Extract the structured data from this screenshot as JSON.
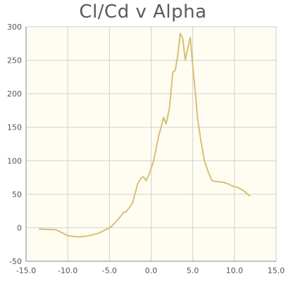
{
  "chart_data": {
    "type": "line",
    "title": "Cl/Cd v Alpha",
    "xlabel": "",
    "ylabel": "",
    "xlim": [
      -15,
      15
    ],
    "ylim": [
      -50,
      300
    ],
    "x_ticks": [
      -15,
      -10,
      -5,
      0,
      5,
      10,
      15
    ],
    "x_tick_labels": [
      "-15.0",
      "-10.0",
      "-5.0",
      "0.0",
      "5.0",
      "10.0",
      "15.0"
    ],
    "y_ticks": [
      -50,
      0,
      50,
      100,
      150,
      200,
      250,
      300
    ],
    "y_tick_labels": [
      "-50",
      "0",
      "50",
      "100",
      "150",
      "200",
      "250",
      "300"
    ],
    "grid": true,
    "legend": "none",
    "colors": {
      "line": "#d8be78",
      "plot_background": "#fffdf2",
      "grid": "#cfcfcf",
      "axis": "#888888"
    },
    "series": [
      {
        "x": [
          -13.4,
          -12.5,
          -11.4,
          -10.6,
          -10.0,
          -9.6,
          -9.0,
          -8.5,
          -8.0,
          -7.5,
          -7.0,
          -6.5,
          -6.0,
          -5.5,
          -5.2,
          -4.8,
          -4.4,
          -4.0,
          -3.6,
          -3.3,
          -3.0,
          -2.6,
          -2.2,
          -1.9,
          -1.6,
          -1.3,
          -1.1,
          -0.9,
          -0.6,
          -0.3,
          0.0,
          0.3,
          0.6,
          0.9,
          1.2,
          1.5,
          1.8,
          2.2,
          2.6,
          2.9,
          3.2,
          3.5,
          3.8,
          4.1,
          4.4,
          4.7,
          5.0,
          5.3,
          5.6,
          6.0,
          6.4,
          6.8,
          7.3,
          7.8,
          8.3,
          8.8,
          9.3,
          9.8,
          10.4,
          11.0,
          11.8
        ],
        "y": [
          -2,
          -2.5,
          -3,
          -8,
          -12,
          -12.5,
          -13.5,
          -13.5,
          -13,
          -12,
          -10.5,
          -9,
          -6.5,
          -3,
          -1.5,
          1.5,
          6.5,
          12,
          18,
          23,
          24,
          30,
          38,
          52,
          66,
          72,
          75,
          76,
          70,
          78,
          88,
          100,
          118,
          137,
          150,
          165,
          155,
          178,
          232,
          235,
          258,
          290,
          282,
          250,
          268,
          284,
          240,
          203,
          160,
          128,
          100,
          85,
          70,
          69,
          68.5,
          67.5,
          65,
          62,
          60,
          56,
          48
        ]
      }
    ]
  }
}
